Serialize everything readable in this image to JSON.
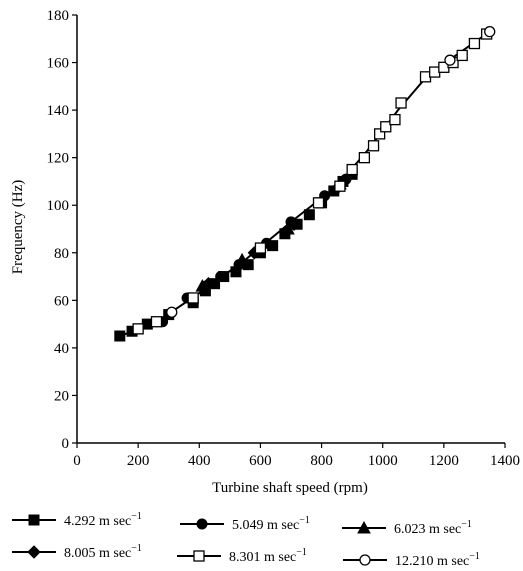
{
  "chart_data": {
    "type": "scatter",
    "xlabel": "Turbine shaft speed (rpm)",
    "ylabel": "Frequency (Hz)",
    "xlim": [
      0,
      1400
    ],
    "ylim": [
      0,
      180
    ],
    "xticks": [
      "0",
      "200",
      "400",
      "600",
      "800",
      "1000",
      "1200",
      "1400"
    ],
    "yticks": [
      "0",
      "20",
      "40",
      "60",
      "80",
      "100",
      "120",
      "140",
      "160",
      "180"
    ],
    "grid": false,
    "legend_position": "bottom",
    "series": [
      {
        "name": "4.292 m sec",
        "marker": "square-filled",
        "x": [
          140,
          180,
          230,
          300,
          380,
          420,
          450,
          480,
          520,
          560,
          600,
          640,
          680,
          720,
          760,
          800,
          840,
          870,
          900
        ],
        "y": [
          45,
          47,
          50,
          54,
          59,
          64,
          67,
          70,
          72,
          75,
          80,
          83,
          88,
          92,
          96,
          101,
          106,
          110,
          113
        ]
      },
      {
        "name": "5.049 m sec",
        "marker": "circle-filled",
        "x": [
          280,
          360,
          420,
          470,
          530,
          620,
          700,
          810,
          880
        ],
        "y": [
          51,
          61,
          66,
          70,
          75,
          84,
          93,
          104,
          111
        ]
      },
      {
        "name": "6.023 m sec",
        "marker": "triangle-filled",
        "x": [
          410,
          540,
          690,
          860
        ],
        "y": [
          66,
          77,
          90,
          109
        ]
      },
      {
        "name": "8.005 m sec",
        "marker": "diamond-filled",
        "x": [
          430,
          580,
          710,
          850
        ],
        "y": [
          67,
          80,
          92,
          107
        ]
      },
      {
        "name": "8.301 m sec",
        "marker": "square-open",
        "x": [
          200,
          260,
          380,
          600,
          790,
          860,
          900,
          940,
          970,
          990,
          1010,
          1040,
          1060,
          1140,
          1170,
          1200,
          1230,
          1260,
          1300,
          1340
        ],
        "y": [
          48,
          51,
          61,
          82,
          101,
          108,
          115,
          120,
          125,
          130,
          133,
          136,
          143,
          154,
          156,
          158,
          160,
          163,
          168,
          172
        ]
      },
      {
        "name": "12.210 m sec",
        "marker": "circle-open",
        "x": [
          310,
          1220,
          1350
        ],
        "y": [
          55,
          161,
          173
        ]
      }
    ],
    "line": {
      "x": [
        140,
        250,
        400,
        550,
        700,
        850,
        950,
        1050,
        1150,
        1250,
        1350
      ],
      "y": [
        45,
        50,
        63,
        77,
        93,
        108,
        123,
        140,
        155,
        164,
        173
      ]
    },
    "legend_unit_exponent": "−1"
  }
}
